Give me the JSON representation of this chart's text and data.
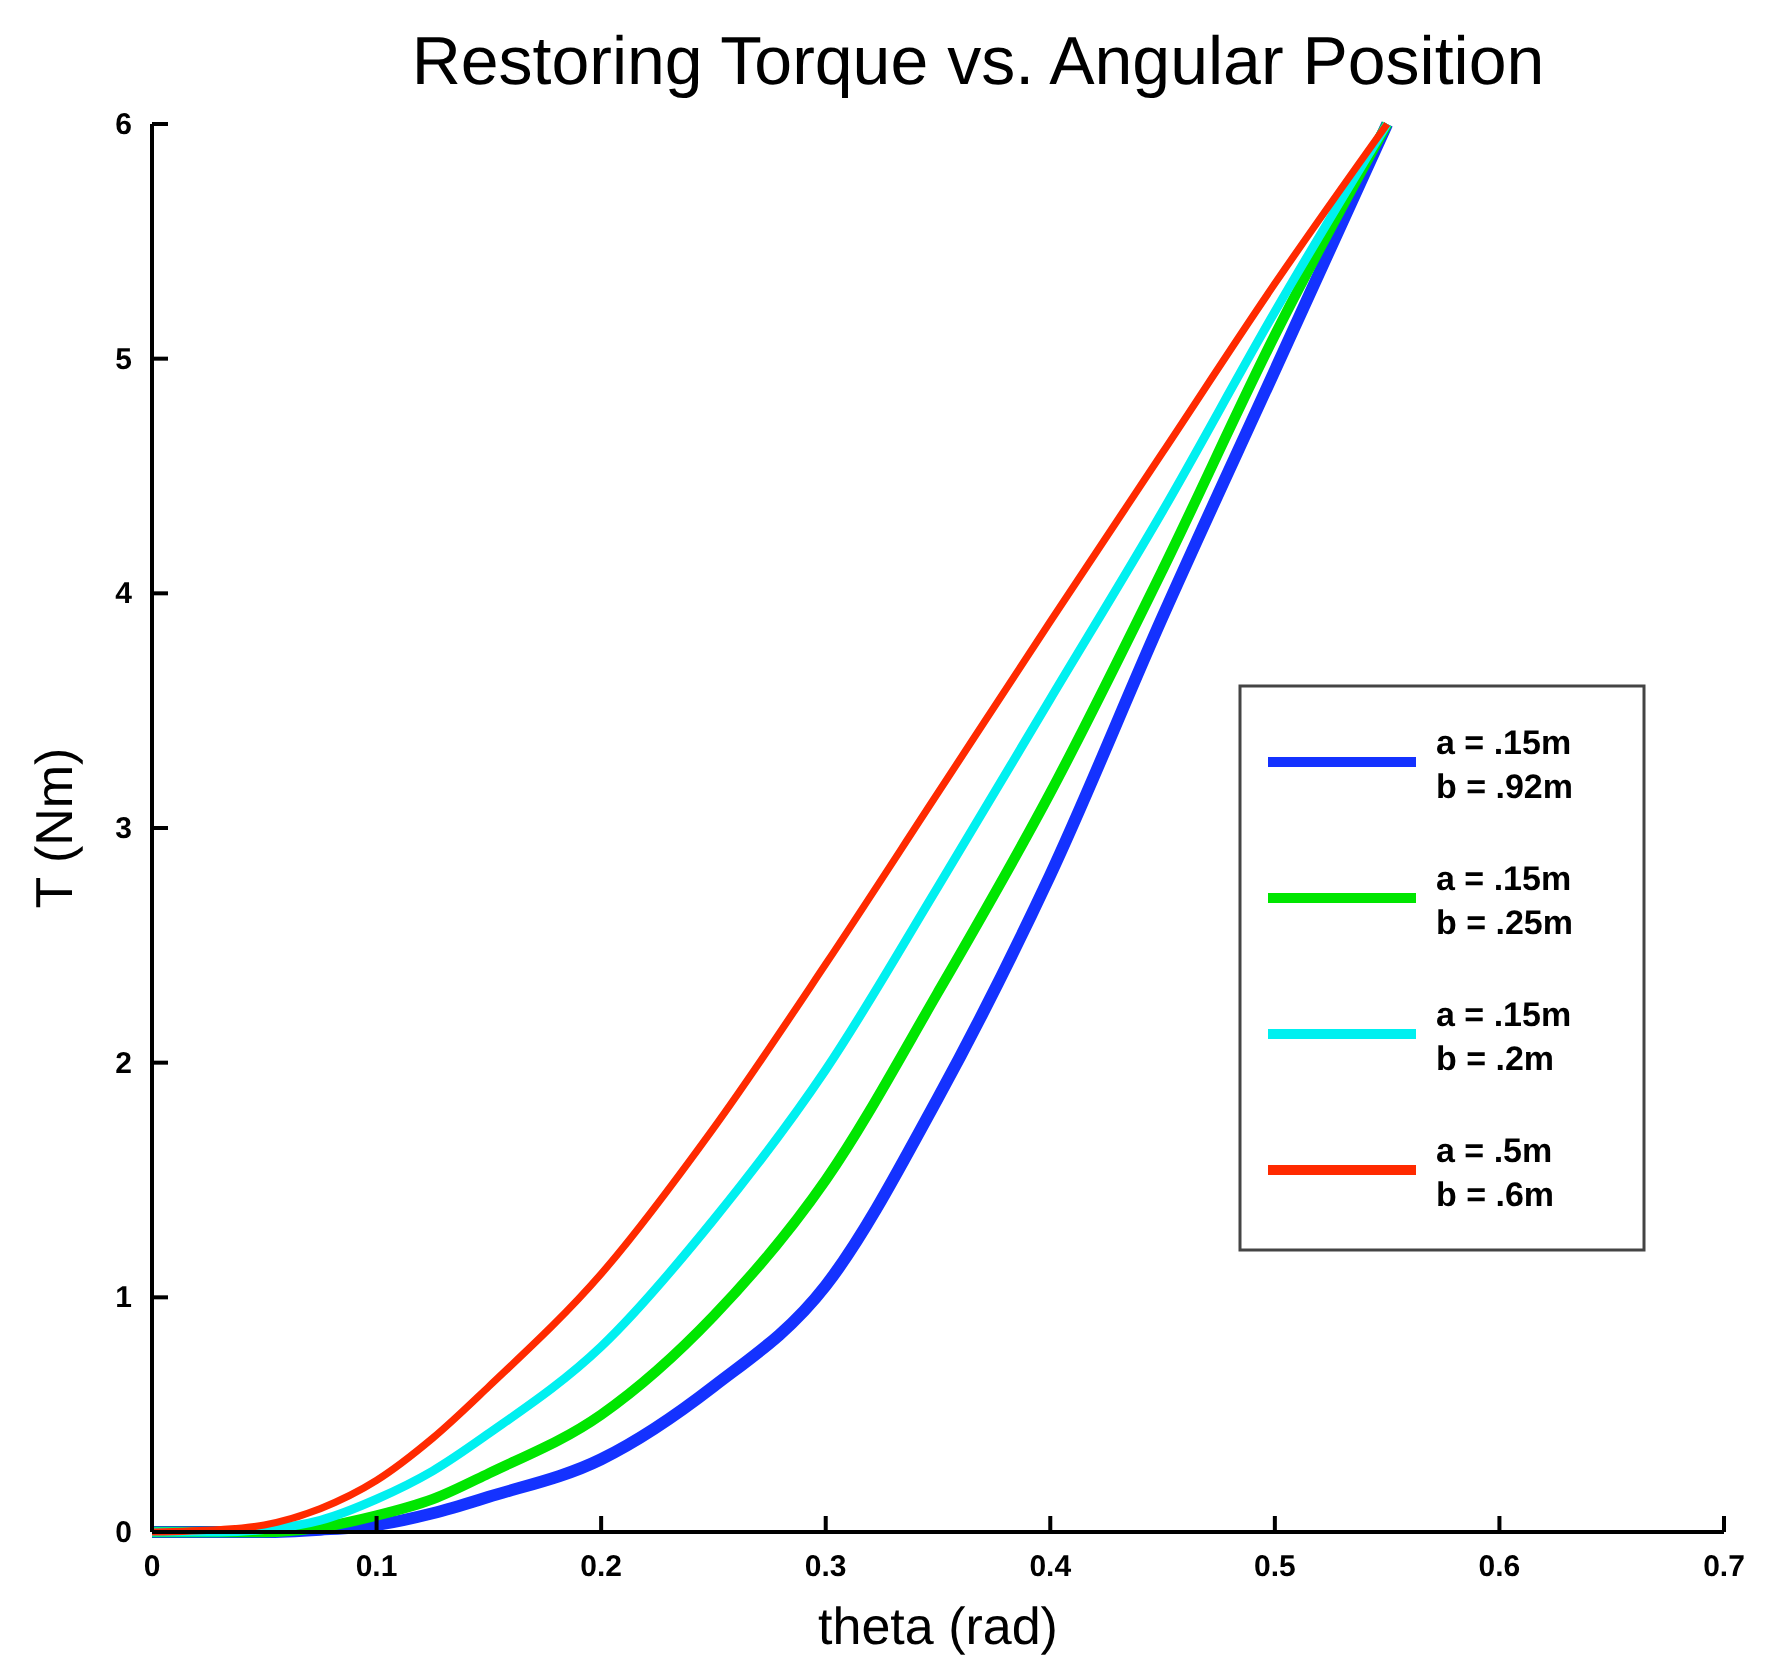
{
  "chart_data": {
    "type": "line",
    "title": "Restoring Torque vs. Angular Position",
    "xlabel": "theta (rad)",
    "ylabel": "T (Nm)",
    "x": [
      0,
      0.03,
      0.05,
      0.075,
      0.1,
      0.125,
      0.15,
      0.2,
      0.25,
      0.3,
      0.35,
      0.4,
      0.45,
      0.5,
      0.55
    ],
    "xlim": [
      0,
      0.7
    ],
    "xticks": [
      0,
      0.1,
      0.2,
      0.3,
      0.4,
      0.5,
      0.6,
      0.7
    ],
    "ylim": [
      0,
      6
    ],
    "yticks": [
      0,
      1,
      2,
      3,
      4,
      5,
      6
    ],
    "grid": false,
    "legend": "right",
    "marker": "none",
    "line_style": "solid",
    "series": [
      {
        "name": "a = .15m\nb = .92m",
        "color": "#1432ff",
        "values": [
          0,
          0,
          0,
          0.01,
          0.03,
          0.08,
          0.15,
          0.31,
          0.62,
          1.05,
          1.85,
          2.8,
          3.9,
          4.95,
          6
        ]
      },
      {
        "name": "a = .15m\nb = .25m",
        "color": "#00e600",
        "values": [
          0,
          0,
          0,
          0.02,
          0.07,
          0.14,
          0.25,
          0.5,
          0.92,
          1.5,
          2.3,
          3.15,
          4.1,
          5.1,
          6
        ]
      },
      {
        "name": "a = .15m\nb = .2m",
        "color": "#00f0f0",
        "values": [
          0,
          0,
          0.01,
          0.05,
          0.14,
          0.26,
          0.42,
          0.79,
          1.33,
          1.97,
          2.75,
          3.55,
          4.35,
          5.2,
          6
        ]
      },
      {
        "name": "a = .5m\nb = .6m",
        "color": "#ff2a00",
        "values": [
          0,
          0.01,
          0.03,
          0.1,
          0.22,
          0.4,
          0.62,
          1.1,
          1.72,
          2.42,
          3.15,
          3.88,
          4.6,
          5.32,
          6
        ]
      }
    ]
  }
}
